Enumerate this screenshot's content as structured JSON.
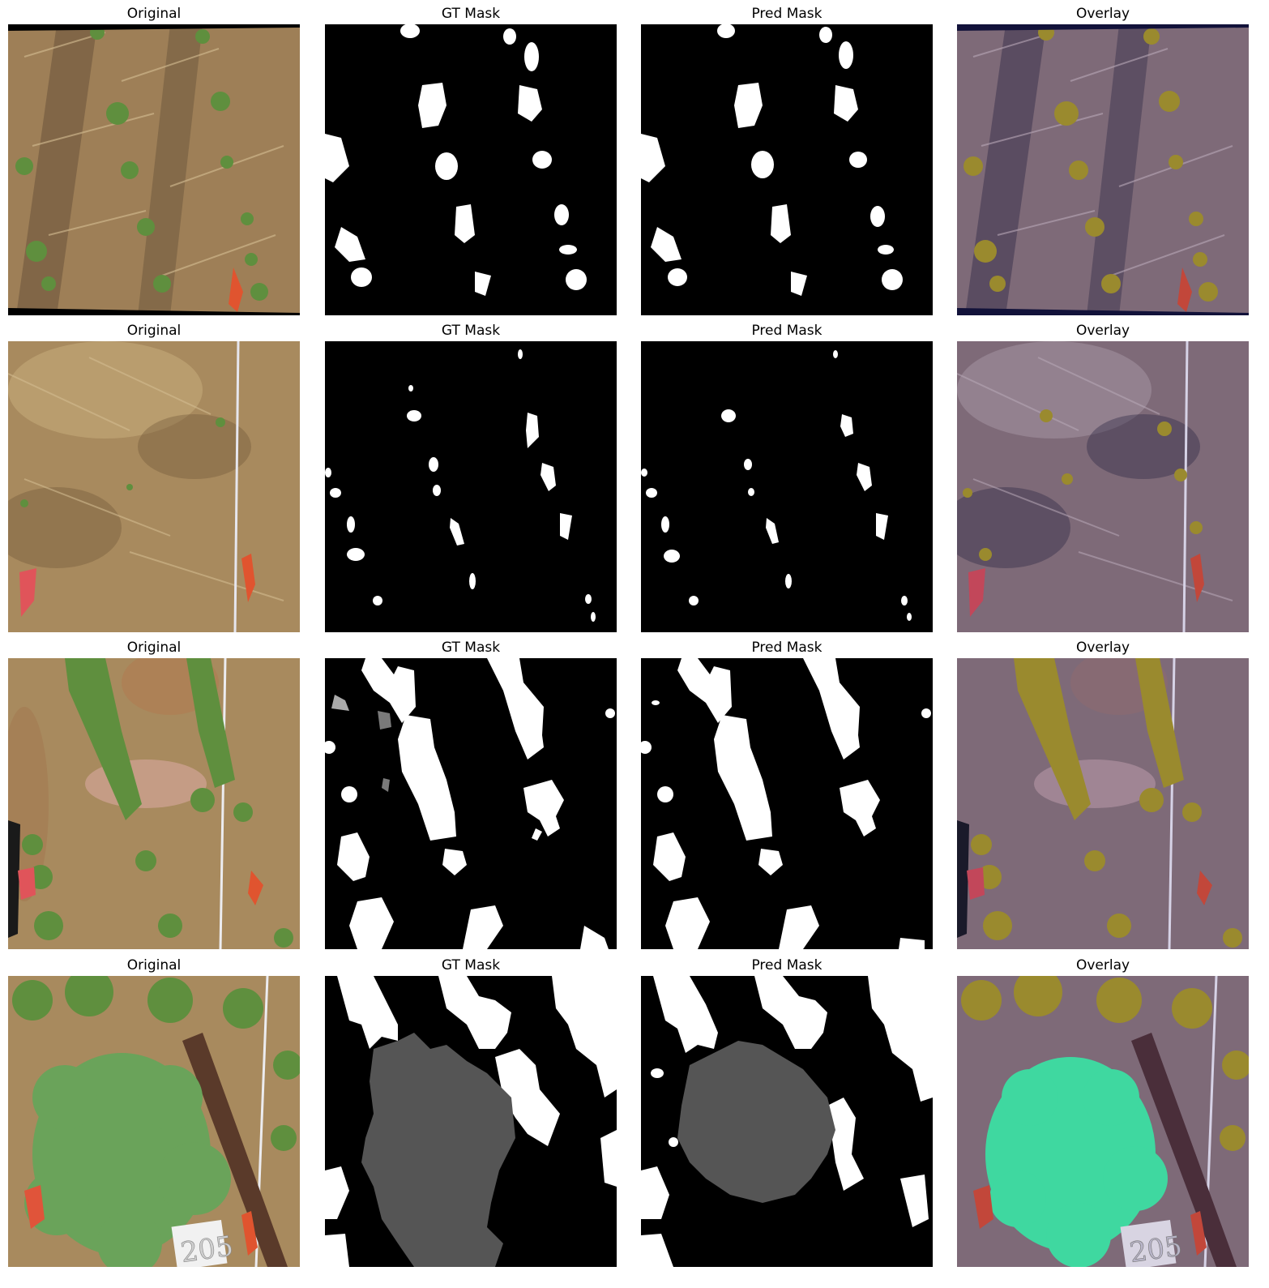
{
  "figure": {
    "rows": [
      {
        "panels": [
          {
            "title": "Original",
            "kind": "photo"
          },
          {
            "title": "GT Mask",
            "kind": "mask"
          },
          {
            "title": "Pred Mask",
            "kind": "mask"
          },
          {
            "title": "Overlay",
            "kind": "overlay"
          }
        ]
      },
      {
        "panels": [
          {
            "title": "Original",
            "kind": "photo"
          },
          {
            "title": "GT Mask",
            "kind": "mask"
          },
          {
            "title": "Pred Mask",
            "kind": "mask"
          },
          {
            "title": "Overlay",
            "kind": "overlay"
          }
        ]
      },
      {
        "panels": [
          {
            "title": "Original",
            "kind": "photo"
          },
          {
            "title": "GT Mask",
            "kind": "mask"
          },
          {
            "title": "Pred Mask",
            "kind": "mask"
          },
          {
            "title": "Overlay",
            "kind": "overlay"
          }
        ]
      },
      {
        "panels": [
          {
            "title": "Original",
            "kind": "photo",
            "sign_text": "205"
          },
          {
            "title": "GT Mask",
            "kind": "mask"
          },
          {
            "title": "Pred Mask",
            "kind": "mask"
          },
          {
            "title": "Overlay",
            "kind": "overlay",
            "sign_text": "205"
          }
        ]
      }
    ],
    "colors": {
      "straw": "#a88a5e",
      "soil": "#8b6a4a",
      "plant_leaf": "#5f8f3e",
      "weed_leaf": "#6aa35a",
      "flag_red": "#e0542f",
      "mask_background": "#000000",
      "mask_crop": "#ffffff",
      "mask_weed": "#555555",
      "overlay_tint": "#5a4b78",
      "overlay_crop": "#9a8a2e",
      "overlay_weed": "#3fd8a0"
    }
  }
}
